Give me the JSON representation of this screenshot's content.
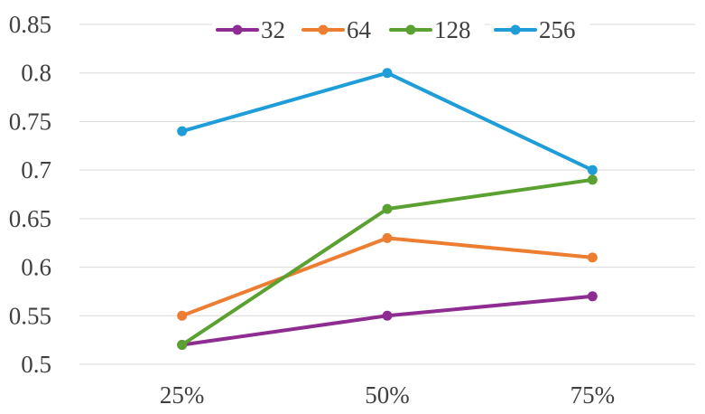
{
  "chart_data": {
    "type": "line",
    "categories": [
      "25%",
      "50%",
      "75%"
    ],
    "series": [
      {
        "name": "32",
        "color": "#8e2c91",
        "values": [
          0.52,
          0.55,
          0.57
        ]
      },
      {
        "name": "64",
        "color": "#ed7d31",
        "values": [
          0.55,
          0.63,
          0.61
        ]
      },
      {
        "name": "128",
        "color": "#5aa131",
        "values": [
          0.52,
          0.66,
          0.69
        ]
      },
      {
        "name": "256",
        "color": "#1f9dd9",
        "values": [
          0.74,
          0.8,
          0.7
        ]
      }
    ],
    "yticks": [
      "0.5",
      "0.55",
      "0.6",
      "0.65",
      "0.7",
      "0.75",
      "0.8",
      "0.85"
    ],
    "ylim": [
      0.5,
      0.85
    ],
    "grid": true,
    "legend_position": "top"
  }
}
